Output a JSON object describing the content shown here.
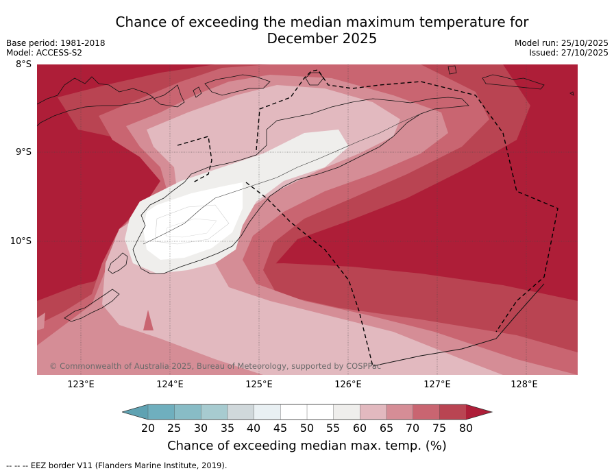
{
  "title": {
    "line1": "Chance of exceeding the median maximum temperature for",
    "line2": "December 2025"
  },
  "meta": {
    "base_period": "Base period: 1981-2018",
    "model": "Model: ACCESS-S2",
    "model_run": "Model run: 25/10/2025",
    "issued": "Issued: 27/10/2025"
  },
  "map": {
    "copyright": "© Commonwealth of Australia 2025, Bureau of Meteorology, supported by COSPPac",
    "lat_labels": [
      "8°S",
      "9°S",
      "10°S"
    ],
    "lon_labels": [
      "123°E",
      "124°E",
      "125°E",
      "126°E",
      "127°E",
      "128°E"
    ]
  },
  "colorbar": {
    "ticks": [
      "20",
      "25",
      "30",
      "35",
      "40",
      "45",
      "50",
      "55",
      "60",
      "65",
      "70",
      "75",
      "80"
    ],
    "colors": [
      "#5fa2b2",
      "#6fafbe",
      "#88bcc6",
      "#a7cbd0",
      "#d0d8db",
      "#e9f0f3",
      "#ffffff",
      "#ffffff",
      "#efeeec",
      "#e2b9bf",
      "#d58d96",
      "#c96571",
      "#b94452",
      "#ae1e38"
    ],
    "label": "Chance of exceeding median max. temp. (%)"
  },
  "legend_note": "--  --  -- EEZ border V11 (Flanders Marine Institute, 2019)."
}
